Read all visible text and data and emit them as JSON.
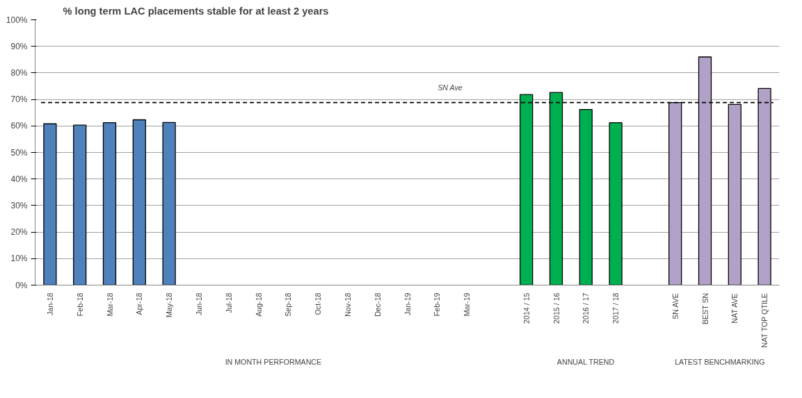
{
  "chart_data": {
    "type": "bar",
    "title": "% long term LAC placements stable for at least 2 years",
    "categories": [
      "Jan-18",
      "Feb-18",
      "Mar-18",
      "Apr-18",
      "May-18",
      "Jun-18",
      "Jul-18",
      "Aug-18",
      "Sep-18",
      "Oct-18",
      "Nov-18",
      "Dec-18",
      "Jan-19",
      "Feb-19",
      "Mar-19",
      null,
      "2014 / 15",
      "2015 / 16",
      "2016 / 17",
      "2017 / 18",
      null,
      "SN AVE",
      "BEST SN",
      "NAT AVE",
      "NAT TOP QTILE"
    ],
    "values": [
      60.8,
      60.3,
      61.2,
      62.3,
      61.3,
      null,
      null,
      null,
      null,
      null,
      null,
      null,
      null,
      null,
      null,
      null,
      71.8,
      72.6,
      66.2,
      61.2,
      null,
      68.8,
      86.0,
      68.1,
      74.1
    ],
    "colors": [
      "#4f81bd",
      "#4f81bd",
      "#4f81bd",
      "#4f81bd",
      "#4f81bd",
      "#4f81bd",
      "#4f81bd",
      "#4f81bd",
      "#4f81bd",
      "#4f81bd",
      "#4f81bd",
      "#4f81bd",
      "#4f81bd",
      "#4f81bd",
      "#4f81bd",
      "#4f81bd",
      "#00b050",
      "#00b050",
      "#00b050",
      "#00b050",
      "#00b050",
      "#b2a1c7",
      "#b2a1c7",
      "#b2a1c7",
      "#b2a1c7"
    ],
    "ylim": [
      0,
      100
    ],
    "yticks": [
      {
        "value": 0,
        "label": "0%"
      },
      {
        "value": 10,
        "label": "10%"
      },
      {
        "value": 20,
        "label": "20%"
      },
      {
        "value": 30,
        "label": "30%"
      },
      {
        "value": 40,
        "label": "40%"
      },
      {
        "value": 50,
        "label": "50%"
      },
      {
        "value": 60,
        "label": "60%"
      },
      {
        "value": 70,
        "label": "70%"
      },
      {
        "value": 80,
        "label": "80%"
      },
      {
        "value": 90,
        "label": "90%"
      },
      {
        "value": 100,
        "label": "100%"
      }
    ],
    "grid": "y",
    "ref_lines": [
      {
        "axis": "y",
        "value": 68.8,
        "label": "SN Ave",
        "color": "#000000",
        "line_style": "dashed"
      }
    ],
    "annotations": [
      "IN MONTH PERFORMANCE",
      "ANNUAL TREND",
      "LATEST BENCHMARKING"
    ]
  }
}
